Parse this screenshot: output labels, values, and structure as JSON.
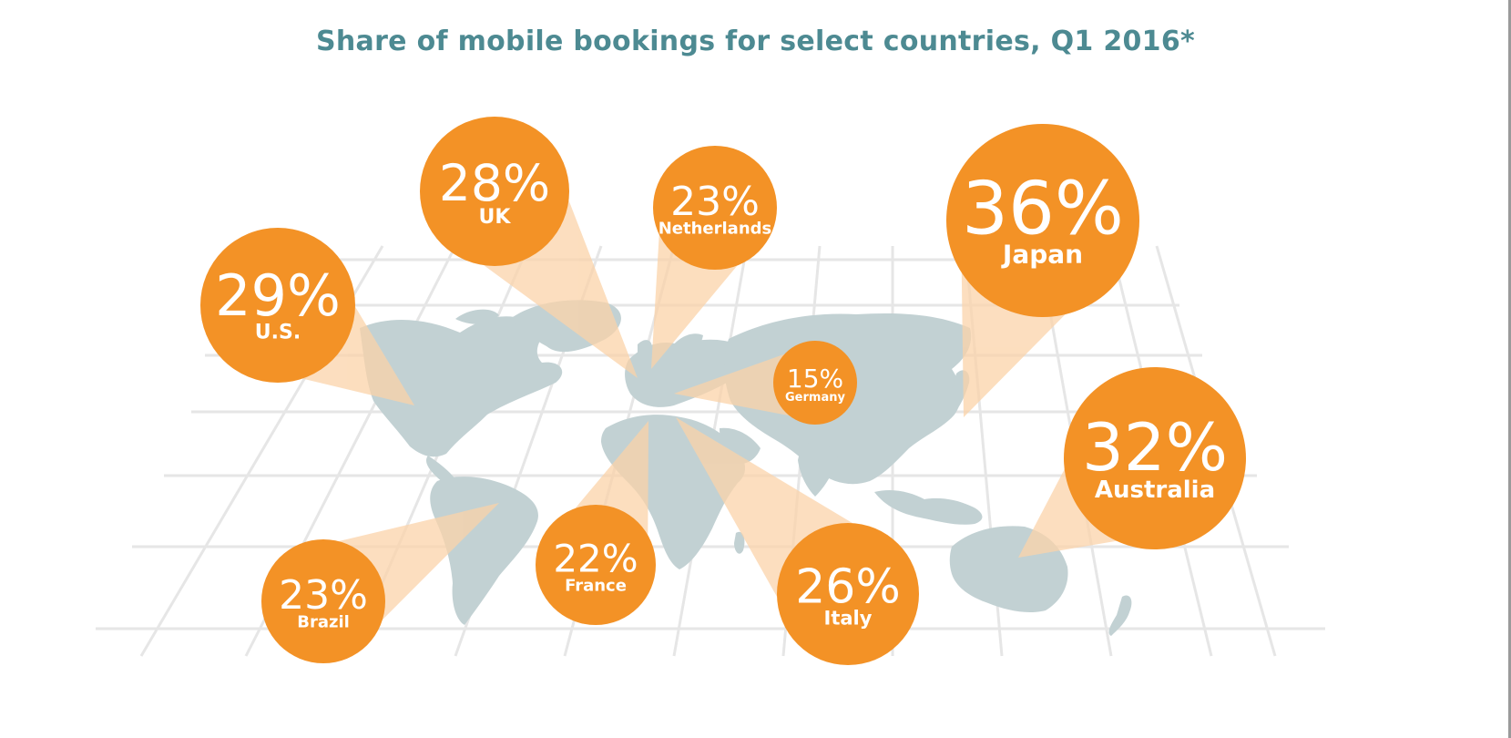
{
  "title": "Share of mobile bookings for select countries, Q1 2016*",
  "colors": {
    "title": "#4d8a92",
    "bubble": "#f39226",
    "beam": "#fbd3a9",
    "land": "#c2d1d3",
    "grid": "#e6e6e6",
    "text": "#ffffff"
  },
  "chart_data": {
    "type": "bubble-map",
    "title": "Share of mobile bookings for select countries, Q1 2016*",
    "unit": "%",
    "categories": [
      "U.S.",
      "UK",
      "Netherlands",
      "Germany",
      "Japan",
      "Australia",
      "Brazil",
      "France",
      "Italy"
    ],
    "values": [
      29,
      28,
      23,
      15,
      36,
      32,
      23,
      22,
      26
    ],
    "labels": [
      "29%",
      "28%",
      "23%",
      "15%",
      "36%",
      "32%",
      "23%",
      "22%",
      "26%"
    ]
  }
}
